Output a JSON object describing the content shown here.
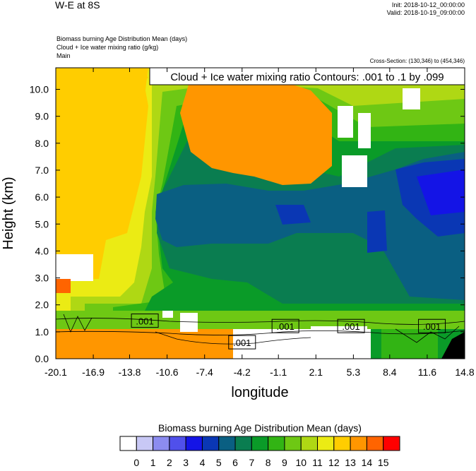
{
  "header": {
    "title": "W-E at 8S",
    "init": "Init: 2018-10-12_00:00:00",
    "valid": "Valid: 2018-10-19_09:00:00",
    "line1": "Biomass burning Age Distribution Mean    (days)",
    "line2": "Cloud + Ice water mixing ratio    (g/kg)",
    "line3": "Main",
    "cross_section": "Cross-Section: (130,346) to (454,346)"
  },
  "chart_data": {
    "type": "heatmap",
    "contour_label": "Cloud + Ice water mixing ratio Contours: .001 to .1 by .099",
    "xlabel": "longitude",
    "ylabel": "Height (km)",
    "xlim": [
      -20.1,
      14.8
    ],
    "ylim": [
      0.0,
      10.8
    ],
    "x_ticks": [
      "-20.1",
      "-16.9",
      "-13.8",
      "-10.6",
      "-7.4",
      "-4.2",
      "-1.1",
      "2.1",
      "5.3",
      "8.4",
      "11.6",
      "14.8"
    ],
    "y_ticks": [
      "0.0",
      "1.0",
      "2.0",
      "3.0",
      "4.0",
      "5.0",
      "6.0",
      "7.0",
      "8.0",
      "9.0",
      "10.0"
    ],
    "contour_labels": [
      {
        "text": ".001",
        "x": -12.5,
        "y": 1.4
      },
      {
        "text": ".001",
        "x": -4.2,
        "y": 0.6
      },
      {
        "text": ".001",
        "x": -0.5,
        "y": 1.2
      },
      {
        "text": ".001",
        "x": 5.1,
        "y": 1.2
      },
      {
        "text": ".001",
        "x": 12.0,
        "y": 1.2
      }
    ],
    "colorbar": {
      "title": "Biomass burning Age Distribution Mean  (days)",
      "labels": [
        "0",
        "1",
        "2",
        "3",
        "4",
        "5",
        "6",
        "7",
        "8",
        "9",
        "10",
        "11",
        "12",
        "13",
        "14",
        "15"
      ],
      "colors": [
        "#ffffff",
        "#c8c8f5",
        "#8c8cf0",
        "#5050eb",
        "#1414e6",
        "#0a37b4",
        "#0a5f82",
        "#0a7d50",
        "#0a9b28",
        "#32b414",
        "#6ec814",
        "#afd814",
        "#ebeb14",
        "#ffcd00",
        "#ff9600",
        "#ff6400",
        "#ff0000"
      ]
    }
  }
}
